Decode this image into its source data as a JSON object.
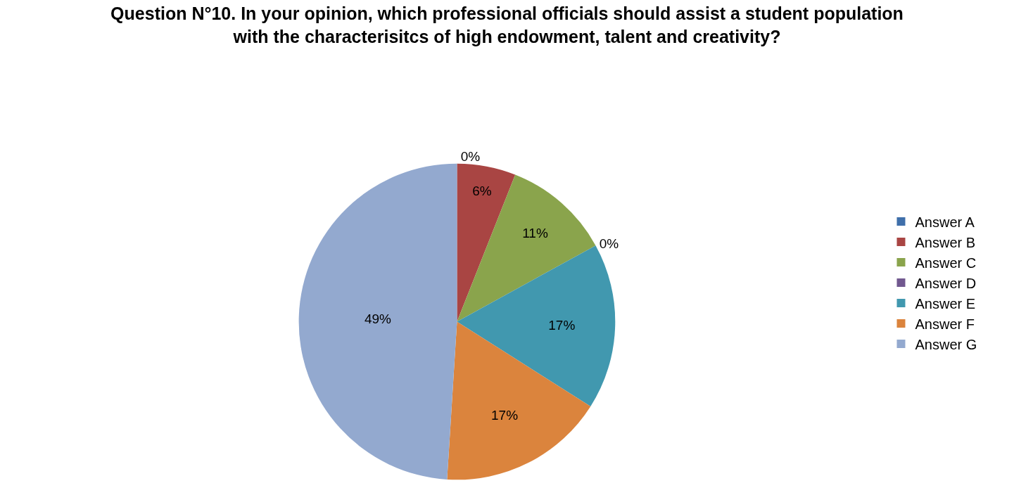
{
  "chart_data": {
    "type": "pie",
    "title": "Question N°10. In your opinion, which professional officials should assist a student population with the characterisitcs of high endowment, talent and creativity?",
    "categories": [
      "Answer A",
      "Answer B",
      "Answer C",
      "Answer D",
      "Answer E",
      "Answer F",
      "Answer G"
    ],
    "values": [
      0,
      6,
      11,
      0,
      17,
      17,
      49
    ],
    "value_labels": [
      "0%",
      "6%",
      "11%",
      "0%",
      "17%",
      "17%",
      "49%"
    ],
    "colors": [
      "#3f6faa",
      "#a94543",
      "#8aa44c",
      "#71588f",
      "#4198af",
      "#db843d",
      "#93a9cf"
    ],
    "legend": "right"
  }
}
